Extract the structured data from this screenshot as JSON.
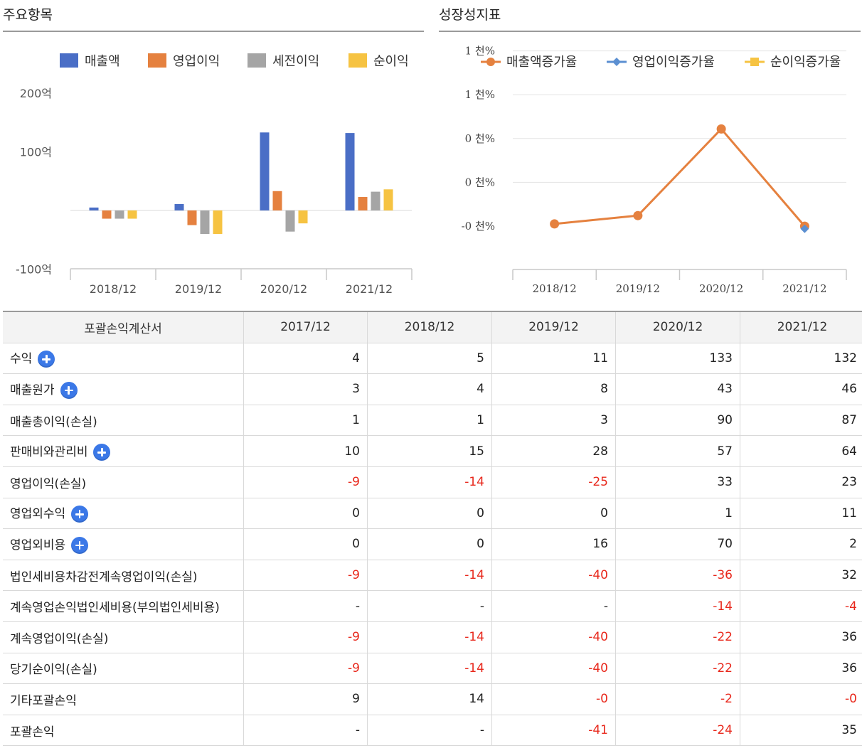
{
  "sections": {
    "left_title": "주요항목",
    "right_title": "성장성지표"
  },
  "chart_data": [
    {
      "type": "bar",
      "categories": [
        "2018/12",
        "2019/12",
        "2020/12",
        "2021/12"
      ],
      "series": [
        {
          "name": "매출액",
          "color": "#4a6ec6",
          "values": [
            5,
            11,
            133,
            132
          ]
        },
        {
          "name": "영업이익",
          "color": "#e5813f",
          "values": [
            -14,
            -25,
            33,
            23
          ]
        },
        {
          "name": "세전이익",
          "color": "#a5a5a5",
          "values": [
            -14,
            -40,
            -36,
            32
          ]
        },
        {
          "name": "순이익",
          "color": "#f6c342",
          "values": [
            -14,
            -40,
            -22,
            36
          ]
        }
      ],
      "yticks": [
        "200억",
        "100억",
        "-100억"
      ],
      "ytick_values": [
        200,
        100,
        -100
      ],
      "ylim": [
        -100,
        200
      ],
      "legend": "top",
      "grid": false
    },
    {
      "type": "line",
      "categories": [
        "2018/12",
        "2019/12",
        "2020/12",
        "2021/12"
      ],
      "series": [
        {
          "name": "매출액증가율",
          "color": "#e5813f",
          "values": [
            25,
            120,
            1109,
            -1
          ]
        },
        {
          "name": "영업이익증가율",
          "color": "#5b8fd1",
          "values": [
            null,
            null,
            null,
            -30
          ]
        },
        {
          "name": "순이익증가율",
          "color": "#f6c342",
          "values": [
            null,
            null,
            null,
            null
          ]
        }
      ],
      "yticks": [
        "1 천%",
        "1 천%",
        "0 천%",
        "0 천%",
        "-0 천%"
      ],
      "ytick_values": [
        2000,
        1500,
        1000,
        500,
        0
      ],
      "ylim": [
        0,
        2000
      ],
      "legend": "top",
      "grid": true
    }
  ],
  "table": {
    "header": [
      "포괄손익계산서",
      "2017/12",
      "2018/12",
      "2019/12",
      "2020/12",
      "2021/12"
    ],
    "rows": [
      {
        "label": "수익",
        "expand": true,
        "values": [
          "4",
          "5",
          "11",
          "133",
          "132"
        ]
      },
      {
        "label": "매출원가",
        "expand": true,
        "values": [
          "3",
          "4",
          "8",
          "43",
          "46"
        ]
      },
      {
        "label": "매출총이익(손실)",
        "expand": false,
        "values": [
          "1",
          "1",
          "3",
          "90",
          "87"
        ]
      },
      {
        "label": "판매비와관리비",
        "expand": true,
        "values": [
          "10",
          "15",
          "28",
          "57",
          "64"
        ]
      },
      {
        "label": "영업이익(손실)",
        "expand": false,
        "values": [
          "-9",
          "-14",
          "-25",
          "33",
          "23"
        ]
      },
      {
        "label": "영업외수익",
        "expand": true,
        "values": [
          "0",
          "0",
          "0",
          "1",
          "11"
        ]
      },
      {
        "label": "영업외비용",
        "expand": true,
        "values": [
          "0",
          "0",
          "16",
          "70",
          "2"
        ]
      },
      {
        "label": "법인세비용차감전계속영업이익(손실)",
        "expand": false,
        "values": [
          "-9",
          "-14",
          "-40",
          "-36",
          "32"
        ]
      },
      {
        "label": "계속영업손익법인세비용(부의법인세비용)",
        "expand": false,
        "values": [
          "-",
          "-",
          "-",
          "-14",
          "-4"
        ]
      },
      {
        "label": "계속영업이익(손실)",
        "expand": false,
        "values": [
          "-9",
          "-14",
          "-40",
          "-22",
          "36"
        ]
      },
      {
        "label": "당기순이익(손실)",
        "expand": false,
        "values": [
          "-9",
          "-14",
          "-40",
          "-22",
          "36"
        ]
      },
      {
        "label": "기타포괄손익",
        "expand": false,
        "values": [
          "9",
          "14",
          "-0",
          "-2",
          "-0"
        ]
      },
      {
        "label": "포괄손익",
        "expand": false,
        "values": [
          "-",
          "-",
          "-41",
          "-24",
          "35"
        ]
      }
    ]
  }
}
